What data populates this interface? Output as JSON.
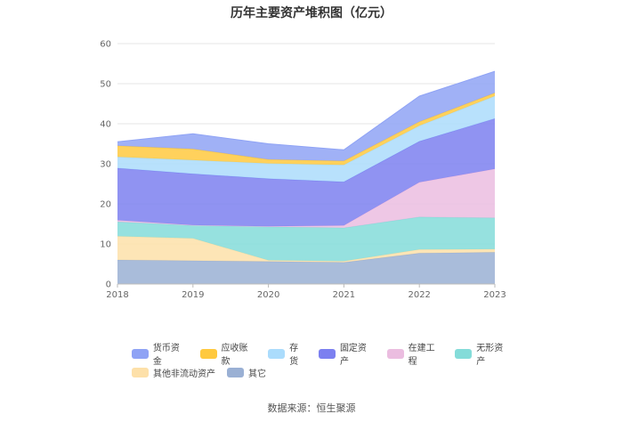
{
  "title": "历年主要资产堆积图（亿元）",
  "source": "数据来源：恒生聚源",
  "colors": {
    "货币资金": "#8fa3f5",
    "应收账款": "#ffc93f",
    "存货": "#abdcfc",
    "固定资产": "#7c80f0",
    "在建工程": "#ebbde0",
    "无形资产": "#84dcd9",
    "其他非流动资产": "#fde0a9",
    "其它": "#9ab0d4"
  },
  "chart_data": {
    "type": "area",
    "stacked": true,
    "x": [
      "2018",
      "2019",
      "2020",
      "2021",
      "2022",
      "2023"
    ],
    "ylim": [
      0,
      60
    ],
    "yticks": [
      0,
      10,
      20,
      30,
      40,
      50,
      60
    ],
    "grid": true,
    "legend_position": "bottom",
    "series": [
      {
        "name": "其它",
        "values": [
          6.0,
          5.8,
          5.6,
          5.4,
          7.7,
          7.9
        ]
      },
      {
        "name": "其他非流动资产",
        "values": [
          5.9,
          5.6,
          0.3,
          0.3,
          0.9,
          0.8
        ]
      },
      {
        "name": "无形资产",
        "values": [
          3.6,
          3.2,
          8.4,
          8.3,
          8.1,
          7.8
        ]
      },
      {
        "name": "在建工程",
        "values": [
          0.4,
          0.1,
          0.1,
          0.6,
          8.7,
          12.2
        ]
      },
      {
        "name": "固定资产",
        "values": [
          13.0,
          12.8,
          11.9,
          10.9,
          10.2,
          12.6
        ]
      },
      {
        "name": "存货",
        "values": [
          2.8,
          3.4,
          3.8,
          4.2,
          3.9,
          5.6
        ]
      },
      {
        "name": "应收账款",
        "values": [
          2.8,
          2.8,
          1.0,
          1.0,
          1.0,
          0.8
        ]
      },
      {
        "name": "货币资金",
        "values": [
          1.0,
          3.8,
          3.9,
          2.8,
          6.4,
          5.4
        ]
      }
    ]
  },
  "legend": [
    [
      "货币资金",
      "应收账款",
      "存货",
      "固定资产",
      "在建工程",
      "无形资产"
    ],
    [
      "其他非流动资产",
      "其它"
    ]
  ]
}
